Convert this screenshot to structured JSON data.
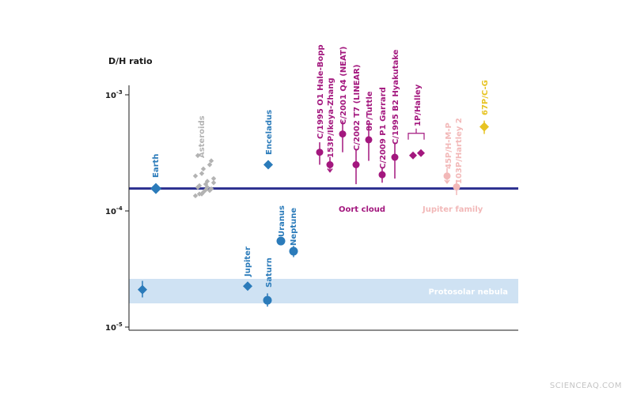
{
  "chart_data": {
    "type": "scatter",
    "ylabel": "D/H ratio",
    "yscale": "log",
    "ylim": [
      1e-05,
      0.001
    ],
    "yticks": [
      {
        "value": 0.001,
        "base": "10",
        "exp": "-3"
      },
      {
        "value": 0.0001,
        "base": "10",
        "exp": "-4"
      },
      {
        "value": 1e-05,
        "base": "10",
        "exp": "-5"
      }
    ],
    "reference_line": {
      "value": 0.000156,
      "color": "#2b2f8f"
    },
    "band": {
      "label": "Protosolar nebula",
      "low": 1.6e-05,
      "high": 2.6e-05,
      "color": "#cfe2f3"
    },
    "colors": {
      "planets": "#2b7bba",
      "asteroids": "#b3b3b3",
      "oort": "#a3177e",
      "jupiter_family": "#f2b8b8",
      "cg": "#e7c322"
    },
    "group_labels": {
      "oort": "Oort cloud",
      "jupiter_family": "Jupiter family"
    },
    "points": [
      {
        "label": "",
        "group": "planets",
        "marker": "diamond",
        "y": 2.1e-05,
        "err": [
          1.8e-05,
          2.5e-05
        ]
      },
      {
        "label": "Earth",
        "group": "planets",
        "marker": "diamond",
        "y": 0.000156
      },
      {
        "label": "Enceladus",
        "group": "planets",
        "marker": "diamond",
        "y": 0.00025
      },
      {
        "label": "Jupiter",
        "group": "planets",
        "marker": "diamond",
        "y": 2.25e-05
      },
      {
        "label": "Saturn",
        "group": "planets",
        "marker": "circle",
        "y": 1.7e-05,
        "err": [
          1.5e-05,
          1.95e-05
        ]
      },
      {
        "label": "Uranus",
        "group": "planets",
        "marker": "circle",
        "y": 5.5e-05
      },
      {
        "label": "Neptune",
        "group": "planets",
        "marker": "circle",
        "y": 4.5e-05,
        "err": [
          4e-05,
          5e-05
        ]
      },
      {
        "label": "C/1995 O1 Hale-Bopp",
        "group": "oort",
        "marker": "circle",
        "y": 0.00032,
        "err": [
          0.00025,
          0.00039
        ]
      },
      {
        "label": "153P/Ikeya-Zhang",
        "group": "oort",
        "marker": "circle",
        "y": 0.00025,
        "upper_limit": true
      },
      {
        "label": "C/2001 Q4 (NEAT)",
        "group": "oort",
        "marker": "circle",
        "y": 0.00046,
        "err": [
          0.00032,
          0.0006
        ]
      },
      {
        "label": "C/2002 T7 (LINEAR)",
        "group": "oort",
        "marker": "circle",
        "y": 0.00025,
        "err": [
          0.00017,
          0.00034
        ]
      },
      {
        "label": "8P/Tuttle",
        "group": "oort",
        "marker": "circle",
        "y": 0.00041,
        "err": [
          0.00027,
          0.00055
        ]
      },
      {
        "label": "C/2009 P1 Garrard",
        "group": "oort",
        "marker": "circle",
        "y": 0.000205,
        "err": [
          0.000175,
          0.000235
        ]
      },
      {
        "label": "C/1995 B2 Hyakutake",
        "group": "oort",
        "marker": "circle",
        "y": 0.00029,
        "err": [
          0.00019,
          0.00038
        ]
      },
      {
        "label": "1P/Halley",
        "group": "oort",
        "marker": "diamond",
        "y": 0.00031,
        "pair": true
      },
      {
        "label": "45P/H-M-P",
        "group": "jupiter_family",
        "marker": "circle",
        "y": 0.0002,
        "upper_limit": true
      },
      {
        "label": "103P/Hartley 2",
        "group": "jupiter_family",
        "marker": "circle",
        "y": 0.000161,
        "err": [
          0.000137,
          0.000185
        ]
      },
      {
        "label": "67P/C-G",
        "group": "cg",
        "marker": "diamond",
        "y": 0.00053,
        "err": [
          0.00046,
          0.0006
        ]
      }
    ],
    "asteroids": {
      "label": "Asteroids",
      "values": [
        0.000135,
        0.00014,
        0.000145,
        0.00015,
        0.000155,
        0.00016,
        0.000165,
        0.00017,
        0.00018,
        0.00019,
        0.0002,
        0.00021,
        0.00023,
        0.00025,
        0.00027,
        0.0003,
        0.00014,
        0.000152,
        0.00016,
        0.000175
      ]
    }
  },
  "watermark": "SCIENCEAQ.COM"
}
